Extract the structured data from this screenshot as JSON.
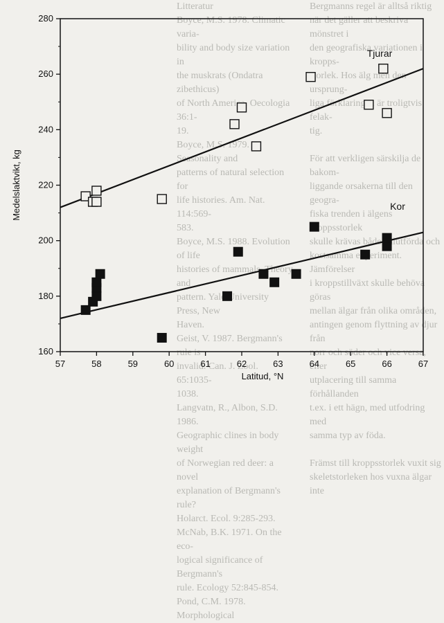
{
  "background_text": {
    "left_column": "Litteratur\nBoyce, M.S. 1978. Climatic varia-\nbility and body size variation in\nthe muskrats (Ondatra zibethicus)\nof North America. Oecologia 36:1-\n19.\nBoyce, M.S. 1979. Seasonality and\npatterns of natural selection for\nlife histories. Am. Nat. 114:569-\n583.\nBoyce, M.S. 1988. Evolution of life\nhistories of mammals. Theory and\npattern. Yale University Press, New\nHaven.\nGeist, V. 1987. Bergmann's rule is\ninvalid. Can. J. Zool. 65:1035-\n1038.\nLangvatn, R., Albon, S.D. 1986.\nGeographic clines in body weight\nof Norwegian red deer: a novel\nexplanation of Bergmann's rule?\nHolarct. Ecol. 9:285-293.\nMcNab, B.K. 1971. On the eco-\nlogical significance of Bergmann's\nrule. Ecology 52:845-854.\nPond, C.M. 1978. Morphological",
    "right_column": "Bergmanns regel är alltså riktig\nnär det gäller att beskriva mönstret i\nden geografiska variationen i kropps-\nstorlek. Hos älg men den ursprung-\nliga förklaringen är troligtvis felak-\ntig.\n\nFör att verkligen särskilja de bakom-\nliggande orsakerna till den geogra-\nfiska trenden i älgens kroppsstorlek\nskulle krävas både välutförda och\nkostsamma experiment. Jämförelser\ni kroppstillväxt skulle behöva göras\nmellan älgar från olika områden,\nantingen genom flyttning av djur från\nnorr och söder och vice versa, eller\nutplacering till samma förhållanden\nt.ex. i ett hägn, med utfodring med\nsamma typ av föda.\n\nFrämst till kroppsstorlek vuxit sig\nskeletstorleken hos vuxna älgar inte"
  },
  "chart_data": {
    "type": "scatter",
    "xlabel": "Latitud, °N",
    "ylabel": "Medelslaktvikt, kg",
    "xlim": [
      57,
      67
    ],
    "ylim": [
      160,
      280
    ],
    "xticks": [
      57,
      58,
      59,
      60,
      61,
      62,
      63,
      64,
      65,
      66,
      67
    ],
    "yticks": [
      160,
      180,
      200,
      220,
      240,
      260,
      280
    ],
    "grid": false,
    "series": [
      {
        "name": "Tjurar",
        "marker": "open-square",
        "color": "#111111",
        "points": [
          [
            57.7,
            216
          ],
          [
            57.9,
            214
          ],
          [
            58.0,
            214
          ],
          [
            58.0,
            218
          ],
          [
            59.8,
            215
          ],
          [
            61.8,
            242
          ],
          [
            62.0,
            248
          ],
          [
            62.4,
            234
          ],
          [
            63.9,
            259
          ],
          [
            65.5,
            249
          ],
          [
            65.9,
            262
          ],
          [
            66.0,
            246
          ]
        ],
        "trend": [
          [
            57,
            212
          ],
          [
            67,
            262
          ]
        ]
      },
      {
        "name": "Kor",
        "marker": "filled-square",
        "color": "#111111",
        "points": [
          [
            57.7,
            175
          ],
          [
            57.9,
            178
          ],
          [
            58.0,
            180
          ],
          [
            58.0,
            183
          ],
          [
            58.0,
            185
          ],
          [
            58.1,
            188
          ],
          [
            59.8,
            165
          ],
          [
            61.6,
            180
          ],
          [
            61.9,
            196
          ],
          [
            62.6,
            188
          ],
          [
            62.9,
            185
          ],
          [
            63.5,
            188
          ],
          [
            64.0,
            205
          ],
          [
            65.4,
            195
          ],
          [
            66.0,
            198
          ],
          [
            66.0,
            201
          ]
        ],
        "trend": [
          [
            57,
            172
          ],
          [
            67,
            203
          ]
        ]
      }
    ]
  }
}
